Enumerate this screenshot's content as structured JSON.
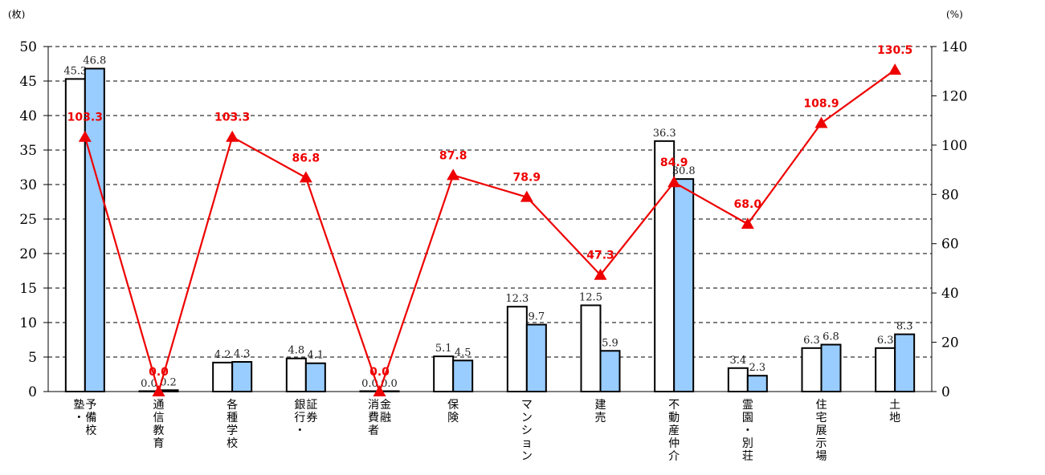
{
  "chart_data": {
    "type": "bar",
    "left_unit": "(枚)",
    "right_unit": "(%)",
    "y_left": {
      "min": 0,
      "max": 50,
      "ticks": [
        0,
        5,
        10,
        15,
        20,
        25,
        30,
        35,
        40,
        45,
        50
      ]
    },
    "y_right": {
      "min": 0,
      "max": 140,
      "ticks": [
        0,
        20,
        40,
        60,
        80,
        100,
        120,
        140
      ]
    },
    "grid": "horizontal-dashed",
    "categories": [
      {
        "columns": [
          "予備校",
          "塾・"
        ]
      },
      {
        "columns": [
          "通信教育"
        ]
      },
      {
        "columns": [
          "各種学校"
        ]
      },
      {
        "columns": [
          "証券",
          "銀行・"
        ]
      },
      {
        "columns": [
          "金融",
          "消費者"
        ]
      },
      {
        "columns": [
          "保険"
        ]
      },
      {
        "columns": [
          "マンション"
        ]
      },
      {
        "columns": [
          "建売"
        ]
      },
      {
        "columns": [
          "不動産仲介"
        ]
      },
      {
        "columns": [
          "霊園・別荘"
        ]
      },
      {
        "columns": [
          "住宅展示場"
        ]
      },
      {
        "columns": [
          "土地"
        ]
      }
    ],
    "series": [
      {
        "type": "bar",
        "axis": "left",
        "fill": "#ffffff",
        "values": [
          45.3,
          0.0,
          4.2,
          4.8,
          0.0,
          5.1,
          12.3,
          12.5,
          36.3,
          3.4,
          6.3,
          6.3
        ],
        "labels": [
          "45.3",
          "0.0",
          "4.2",
          "4.8",
          "0.0",
          "5.1",
          "12.3",
          "12.5",
          "36.3",
          "3.4",
          "6.3",
          "6.3"
        ]
      },
      {
        "type": "bar",
        "axis": "left",
        "fill": "#99ccff",
        "values": [
          46.8,
          0.2,
          4.3,
          4.1,
          0.0,
          4.5,
          9.7,
          5.9,
          30.8,
          2.3,
          6.8,
          8.3
        ],
        "labels": [
          "46.8",
          "0.2",
          "4.3",
          "4.1",
          "0.0",
          "4.5",
          "9.7",
          "5.9",
          "30.8",
          "2.3",
          "6.8",
          "8.3"
        ]
      },
      {
        "type": "line",
        "axis": "right",
        "color": "#ee0000",
        "marker": "triangle",
        "values": [
          103.3,
          0.0,
          103.3,
          86.8,
          0.0,
          87.8,
          78.9,
          47.3,
          84.9,
          68.0,
          108.9,
          130.5
        ],
        "labels": [
          "103.3",
          "0.0",
          "103.3",
          "86.8",
          "0.0",
          "87.8",
          "78.9",
          "47.3",
          "84.9",
          "68.0",
          "108.9",
          "130.5"
        ]
      }
    ]
  }
}
